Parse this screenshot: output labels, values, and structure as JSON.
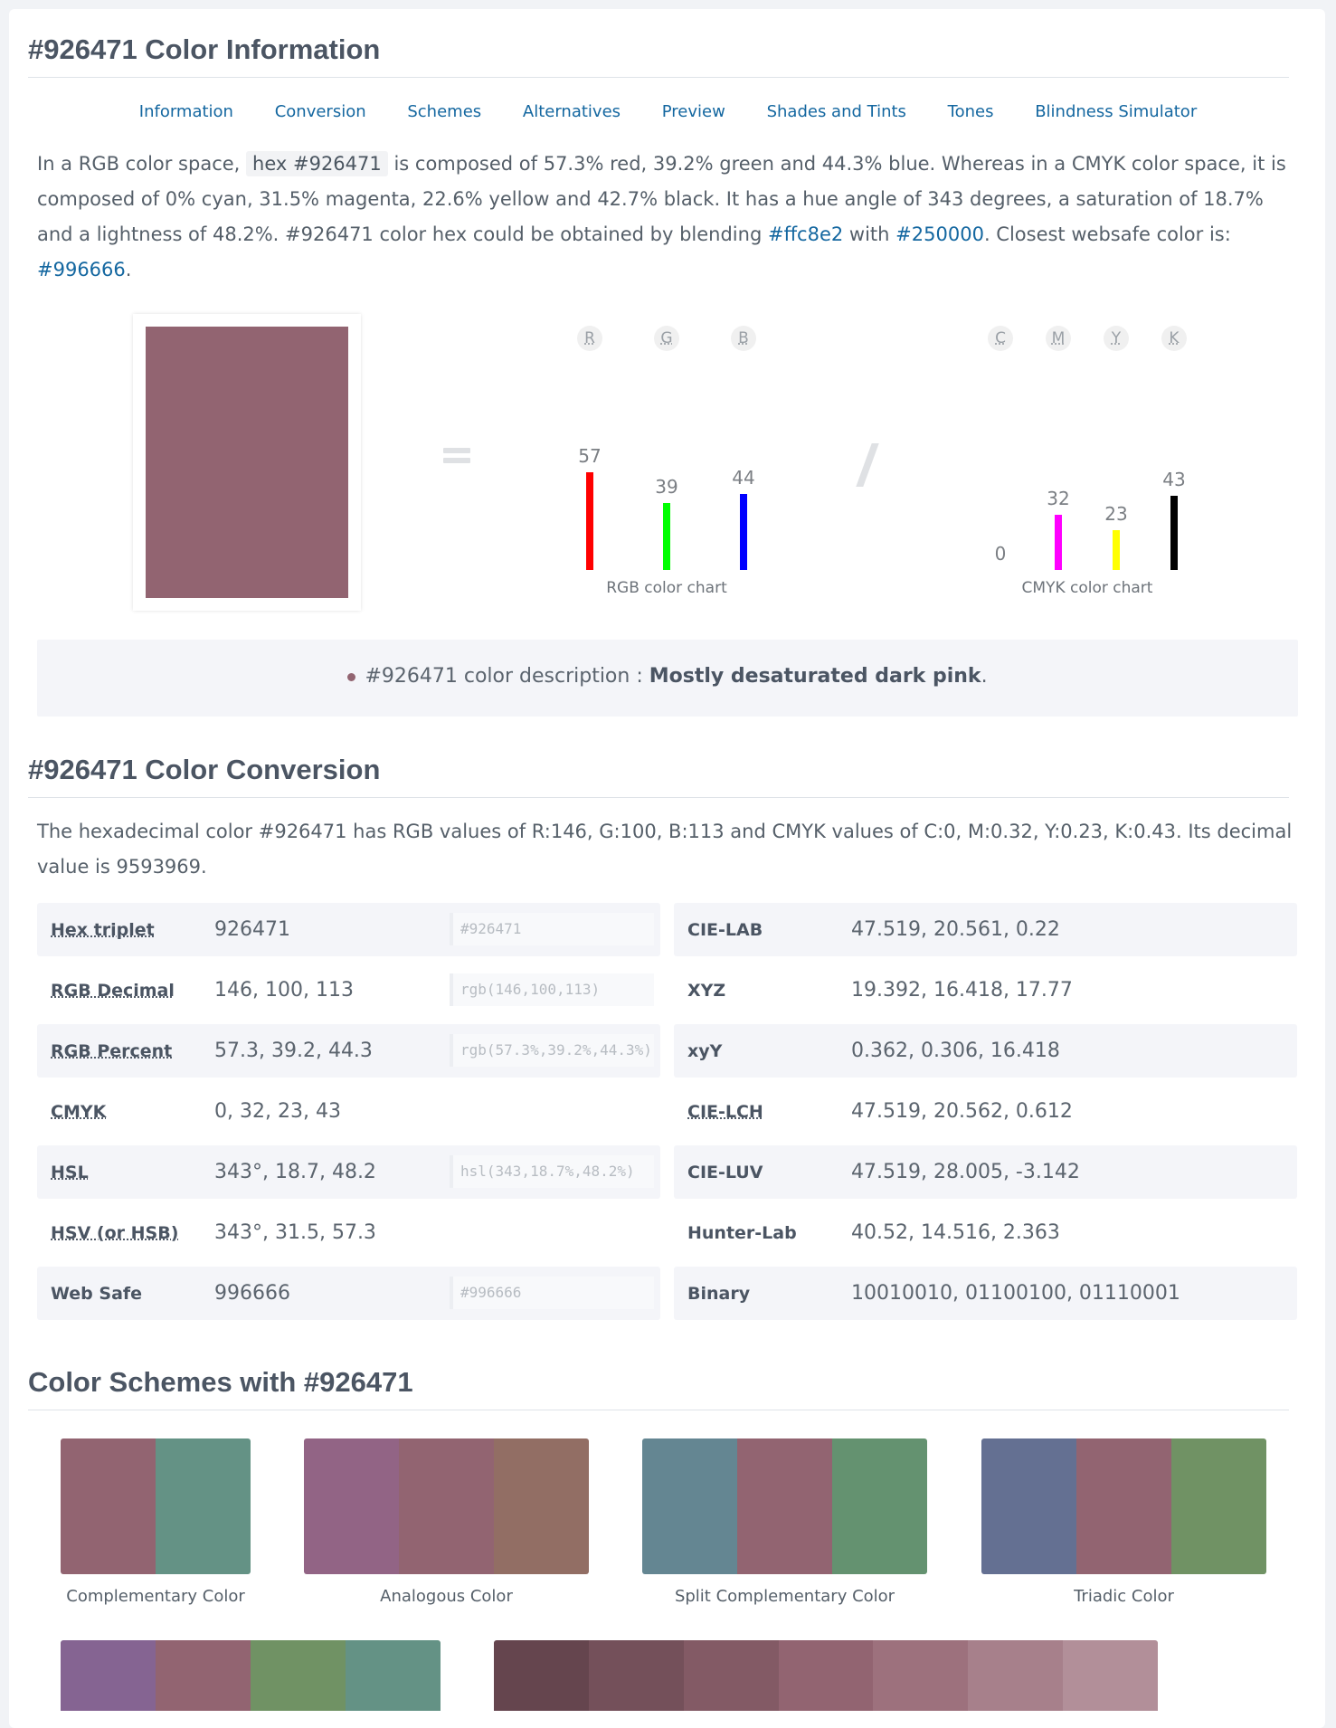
{
  "color": {
    "hex": "#926471"
  },
  "info_title": "#926471 Color Information",
  "nav": [
    "Information",
    "Conversion",
    "Schemes",
    "Alternatives",
    "Preview",
    "Shades and Tints",
    "Tones",
    "Blindness Simulator"
  ],
  "intro": {
    "p1": "In a RGB color space,",
    "code": "hex #926471",
    "p2": "is composed of 57.3% red, 39.2% green and 44.3% blue. Whereas in a CMYK color space, it is composed of 0% cyan, 31.5% magenta, 22.6% yellow and 42.7% black. It has a hue angle of 343 degrees, a saturation of 18.7% and a lightness of 48.2%. #926471 color hex could be obtained by blending",
    "link1": "#ffc8e2",
    "p3": "with",
    "link2": "#250000",
    "p4": ". Closest websafe color is:",
    "link3": "#996666",
    "p5": "."
  },
  "rgb_chart": {
    "labels": [
      "R",
      "G",
      "B"
    ],
    "values": [
      57,
      39,
      44
    ],
    "colors": [
      "#ff0000",
      "#00ff00",
      "#0000ff"
    ],
    "caption": "RGB color chart"
  },
  "cmyk_chart": {
    "labels": [
      "C",
      "M",
      "Y",
      "K"
    ],
    "values": [
      0,
      32,
      23,
      43
    ],
    "colors": [
      "#00ffff",
      "#ff00ff",
      "#ffff00",
      "#000000"
    ],
    "caption": "CMYK color chart"
  },
  "description": {
    "prefix": "#926471 color description :",
    "value": "Mostly desaturated dark pink",
    "suffix": "."
  },
  "conversion_title": "#926471 Color Conversion",
  "conversion_text": "The hexadecimal color #926471 has RGB values of R:146, G:100, B:113 and CMYK values of C:0, M:0.32, Y:0.23, K:0.43. Its decimal value is 9593969.",
  "table_left": [
    {
      "key": "Hex triplet",
      "value": "926471",
      "code": "#926471"
    },
    {
      "key": "RGB Decimal",
      "value": "146, 100, 113",
      "code": "rgb(146,100,113)"
    },
    {
      "key": "RGB Percent",
      "value": "57.3, 39.2, 44.3",
      "code": "rgb(57.3%,39.2%,44.3%)"
    },
    {
      "key": "CMYK",
      "value": "0, 32, 23, 43",
      "code": ""
    },
    {
      "key": "HSL",
      "value": "343°, 18.7, 48.2",
      "code": "hsl(343,18.7%,48.2%)"
    },
    {
      "key": "HSV (or HSB)",
      "value": "343°, 31.5, 57.3",
      "code": ""
    },
    {
      "key": "Web Safe",
      "value": "996666",
      "code": "#996666"
    }
  ],
  "table_right": [
    {
      "key": "CIE-LAB",
      "value": "47.519, 20.561, 0.22"
    },
    {
      "key": "XYZ",
      "value": "19.392, 16.418, 17.77"
    },
    {
      "key": "xyY",
      "value": "0.362, 0.306, 16.418"
    },
    {
      "key": "CIE-LCH",
      "value": "47.519, 20.562, 0.612"
    },
    {
      "key": "CIE-LUV",
      "value": "47.519, 28.005, -3.142"
    },
    {
      "key": "Hunter-Lab",
      "value": "40.52, 14.516, 2.363"
    },
    {
      "key": "Binary",
      "value": "10010010, 01100100, 01110001"
    }
  ],
  "schemes_title": "Color Schemes with #926471",
  "schemes": [
    {
      "name": "Complementary Color",
      "colors": [
        "#926471",
        "#649285"
      ]
    },
    {
      "name": "Analogous Color",
      "colors": [
        "#926485",
        "#926471",
        "#926e64"
      ]
    },
    {
      "name": "Split Complementary Color",
      "colors": [
        "#648692",
        "#926471",
        "#649270"
      ]
    },
    {
      "name": "Triadic Color",
      "colors": [
        "#647092",
        "#926471",
        "#709264"
      ]
    }
  ],
  "schemes_row2": [
    {
      "colors": [
        "#856492",
        "#926471",
        "#709264",
        "#649285"
      ]
    },
    {
      "colors": [
        "#65454e",
        "#74505a",
        "#835a65",
        "#926471",
        "#9d717d",
        "#a7808b",
        "#b28f99"
      ]
    }
  ]
}
